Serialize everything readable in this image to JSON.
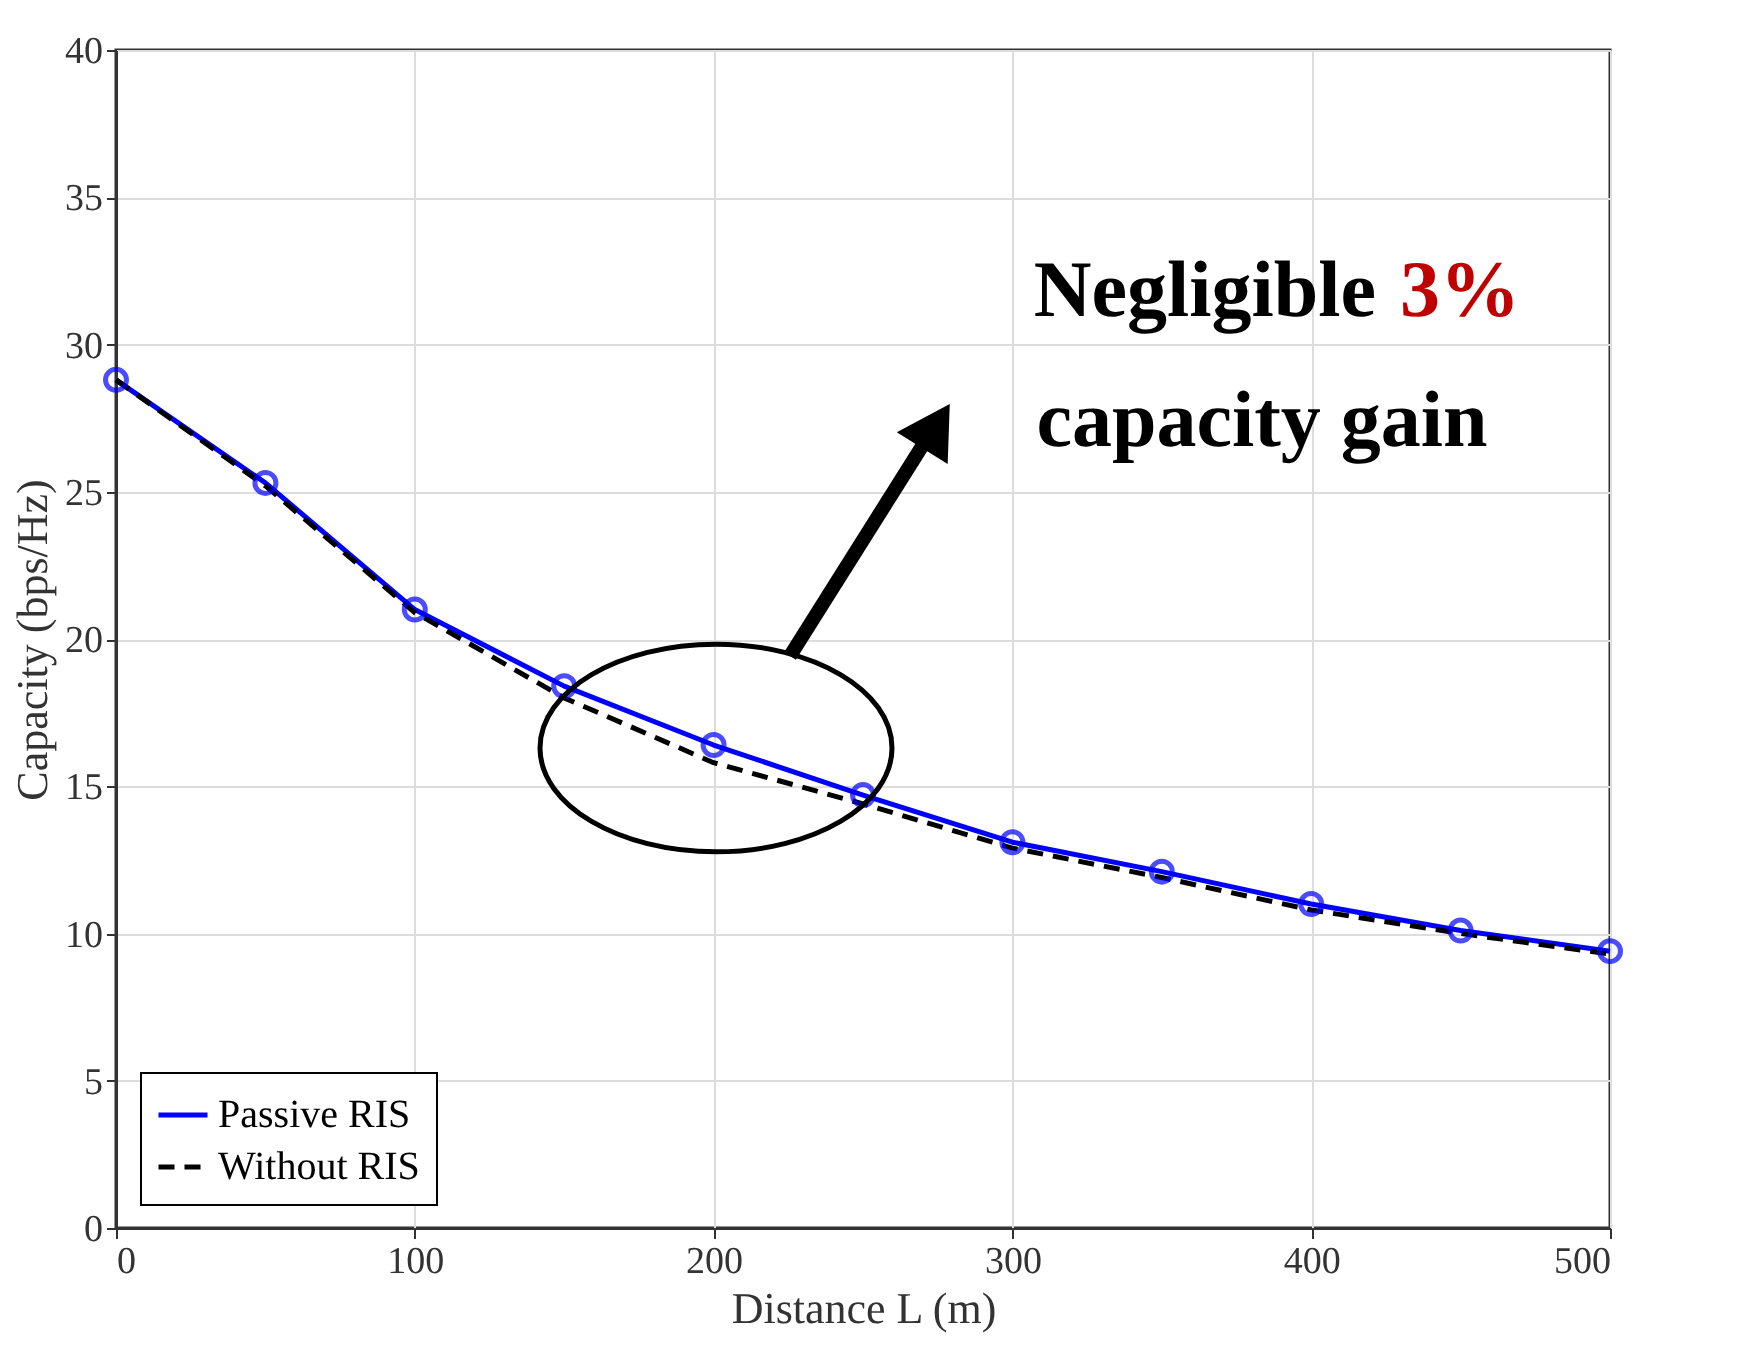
{
  "chart_data": {
    "type": "line",
    "xlabel": "Distance L (m)",
    "ylabel": "Capacity (bps/Hz)",
    "x": [
      0,
      50,
      100,
      150,
      200,
      250,
      300,
      350,
      400,
      450,
      500
    ],
    "series": [
      {
        "name": "Passive RIS",
        "color": "#0000ff",
        "marker": "circle",
        "line_style": "solid",
        "values": [
          28.8,
          25.3,
          21.0,
          18.4,
          16.4,
          14.7,
          13.1,
          12.1,
          11.0,
          10.1,
          9.4
        ]
      },
      {
        "name": "Without RIS",
        "color": "#000000",
        "marker": "none",
        "line_style": "dashed",
        "values": [
          28.8,
          25.2,
          20.9,
          18.0,
          15.8,
          14.4,
          12.9,
          11.9,
          10.8,
          10.0,
          9.3
        ]
      }
    ],
    "xlim": [
      0,
      500
    ],
    "xticks": [
      0,
      100,
      200,
      300,
      400,
      500
    ],
    "ylim": [
      0,
      40
    ],
    "yticks": [
      0,
      5,
      10,
      15,
      20,
      25,
      30,
      35,
      40
    ],
    "grid": true,
    "legend": "bottom left",
    "annotations": [
      "Negligible 3%",
      "capacity gain"
    ]
  }
}
